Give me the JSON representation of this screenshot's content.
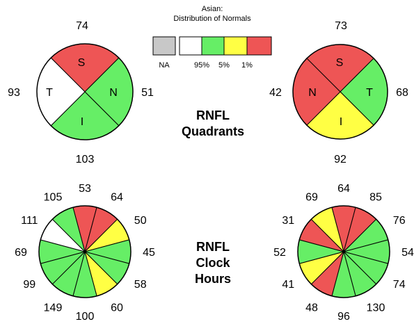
{
  "colors": {
    "na": "#c8c8c8",
    "within_normal": "#ffffff",
    "borderline": "#66ee66",
    "outside_5": "#ffff44",
    "outside_1": "#ee5555"
  },
  "legend": {
    "title_line1": "Asian:",
    "title_line2": "Distribution of Normals",
    "na_label": "NA",
    "tick_95": "95%",
    "tick_5": "5%",
    "tick_1": "1%"
  },
  "titles": {
    "quadrants_line1": "RNFL",
    "quadrants_line2": "Quadrants",
    "clock_line1": "RNFL",
    "clock_line2": "Clock",
    "clock_line3": "Hours"
  },
  "quadrants_left": {
    "S": {
      "label": "S",
      "value": "74",
      "color": "outside_1"
    },
    "T": {
      "label": "T",
      "value": "93",
      "color": "within_normal"
    },
    "N": {
      "label": "N",
      "value": "51",
      "color": "borderline"
    },
    "I": {
      "label": "I",
      "value": "103",
      "color": "borderline"
    }
  },
  "quadrants_right": {
    "S": {
      "label": "S",
      "value": "73",
      "color": "outside_1"
    },
    "N": {
      "label": "N",
      "value": "42",
      "color": "outside_1"
    },
    "T": {
      "label": "T",
      "value": "68",
      "color": "borderline"
    },
    "I": {
      "label": "I",
      "value": "92",
      "color": "outside_5"
    }
  },
  "clock_left": [
    {
      "hour": 12,
      "value": "53",
      "color": "outside_1"
    },
    {
      "hour": 1,
      "value": "64",
      "color": "outside_1"
    },
    {
      "hour": 2,
      "value": "50",
      "color": "outside_5"
    },
    {
      "hour": 3,
      "value": "45",
      "color": "borderline"
    },
    {
      "hour": 4,
      "value": "58",
      "color": "borderline"
    },
    {
      "hour": 5,
      "value": "60",
      "color": "outside_5"
    },
    {
      "hour": 6,
      "value": "100",
      "color": "borderline"
    },
    {
      "hour": 7,
      "value": "149",
      "color": "borderline"
    },
    {
      "hour": 8,
      "value": "99",
      "color": "borderline"
    },
    {
      "hour": 9,
      "value": "69",
      "color": "borderline"
    },
    {
      "hour": 10,
      "value": "111",
      "color": "within_normal"
    },
    {
      "hour": 11,
      "value": "105",
      "color": "borderline"
    }
  ],
  "clock_right": [
    {
      "hour": 12,
      "value": "64",
      "color": "outside_1"
    },
    {
      "hour": 1,
      "value": "85",
      "color": "outside_1"
    },
    {
      "hour": 2,
      "value": "76",
      "color": "borderline"
    },
    {
      "hour": 3,
      "value": "54",
      "color": "borderline"
    },
    {
      "hour": 4,
      "value": "74",
      "color": "borderline"
    },
    {
      "hour": 5,
      "value": "130",
      "color": "borderline"
    },
    {
      "hour": 6,
      "value": "96",
      "color": "borderline"
    },
    {
      "hour": 7,
      "value": "48",
      "color": "outside_1"
    },
    {
      "hour": 8,
      "value": "41",
      "color": "outside_5"
    },
    {
      "hour": 9,
      "value": "52",
      "color": "borderline"
    },
    {
      "hour": 10,
      "value": "31",
      "color": "outside_1"
    },
    {
      "hour": 11,
      "value": "69",
      "color": "outside_5"
    }
  ]
}
